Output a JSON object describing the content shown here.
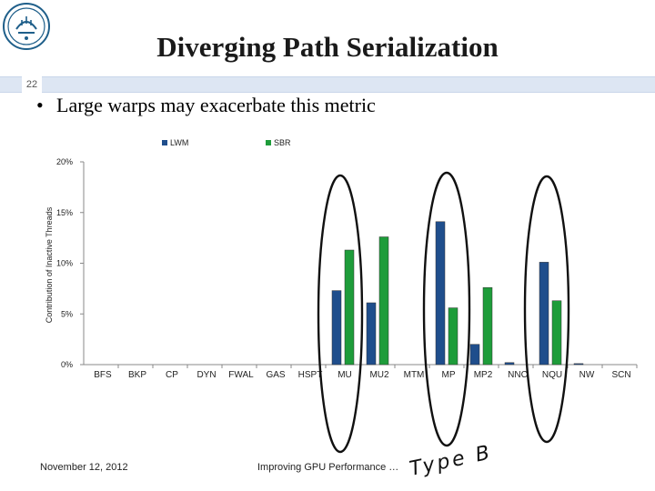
{
  "slide": {
    "title": "Diverging Path Serialization",
    "slide_number": "22",
    "bullet": "Large warps may exacerbate this metric",
    "footer_date": "November 12, 2012",
    "footer_center": "Improving GPU Performance …",
    "annotation": "Type B"
  },
  "chart_data": {
    "type": "bar",
    "ylabel": "Contribution of Inactive Threads",
    "ylim": [
      0,
      20
    ],
    "yticks": [
      "0%",
      "5%",
      "10%",
      "15%",
      "20%"
    ],
    "categories": [
      "BFS",
      "BKP",
      "CP",
      "DYN",
      "FWAL",
      "GAS",
      "HSPT",
      "MU",
      "MU2",
      "MTM",
      "MP",
      "MP2",
      "NNC",
      "NQU",
      "NW",
      "SCN"
    ],
    "series": [
      {
        "name": "LWM",
        "color": "#1f4e8c",
        "values": [
          0,
          0,
          0,
          0,
          0,
          0,
          0,
          7.3,
          6.1,
          0,
          14.1,
          2.0,
          0.2,
          10.1,
          0.1,
          0
        ]
      },
      {
        "name": "SBR",
        "color": "#1e9c3a",
        "values": [
          0,
          0,
          0,
          0,
          0,
          0,
          0,
          11.3,
          12.6,
          0,
          5.6,
          7.6,
          0,
          6.3,
          0,
          0
        ]
      }
    ],
    "legend": "top",
    "grid": false,
    "highlighted": [
      "MU",
      "MU2",
      "MP",
      "MP2",
      "NQU"
    ]
  }
}
